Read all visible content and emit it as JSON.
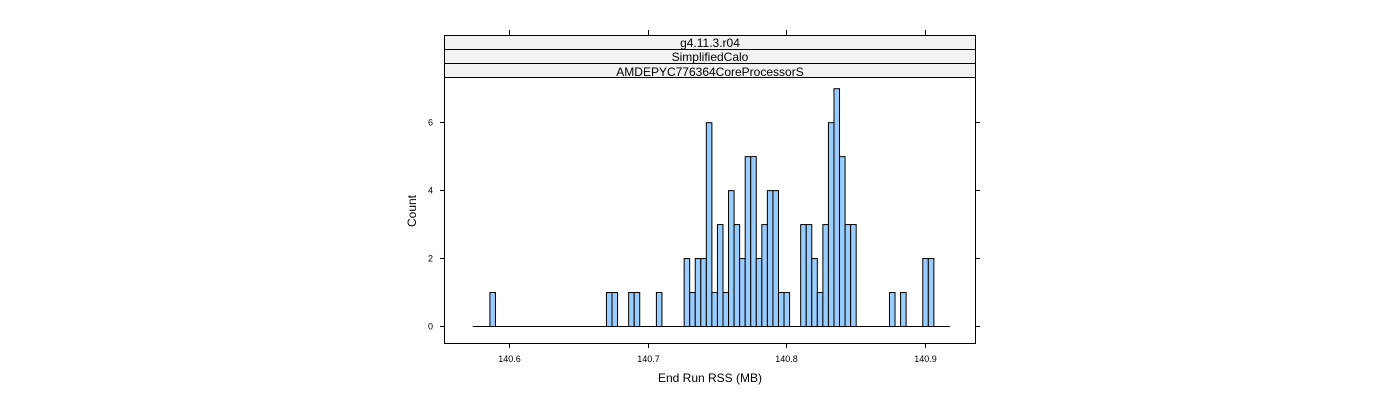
{
  "chart_data": {
    "type": "bar",
    "panel_strips": [
      "g4.11.3.r04",
      "SimplifiedCalo",
      "AMDEPYC776364CoreProcessorS"
    ],
    "xlabel": "End Run RSS (MB)",
    "ylabel": "Count",
    "xlim": [
      140.554,
      140.936
    ],
    "ylim": [
      -0.5,
      7.3
    ],
    "x_ticks": [
      140.6,
      140.7,
      140.8,
      140.9
    ],
    "x_tick_labels": [
      "140.6",
      "140.7",
      "140.8",
      "140.9"
    ],
    "y_ticks": [
      0,
      2,
      4,
      6
    ],
    "y_tick_labels": [
      "0",
      "2",
      "4",
      "6"
    ],
    "baseline_range": [
      140.574,
      140.918
    ],
    "bin_width": 0.004,
    "bars": [
      {
        "x": 140.588,
        "count": 1
      },
      {
        "x": 140.672,
        "count": 1
      },
      {
        "x": 140.676,
        "count": 1
      },
      {
        "x": 140.688,
        "count": 1
      },
      {
        "x": 140.692,
        "count": 1
      },
      {
        "x": 140.708,
        "count": 1
      },
      {
        "x": 140.728,
        "count": 2
      },
      {
        "x": 140.732,
        "count": 1
      },
      {
        "x": 140.736,
        "count": 2
      },
      {
        "x": 140.74,
        "count": 2
      },
      {
        "x": 140.744,
        "count": 6
      },
      {
        "x": 140.748,
        "count": 1
      },
      {
        "x": 140.752,
        "count": 3
      },
      {
        "x": 140.756,
        "count": 1
      },
      {
        "x": 140.76,
        "count": 4
      },
      {
        "x": 140.764,
        "count": 3
      },
      {
        "x": 140.768,
        "count": 2
      },
      {
        "x": 140.772,
        "count": 5
      },
      {
        "x": 140.776,
        "count": 5
      },
      {
        "x": 140.78,
        "count": 2
      },
      {
        "x": 140.784,
        "count": 3
      },
      {
        "x": 140.788,
        "count": 4
      },
      {
        "x": 140.792,
        "count": 4
      },
      {
        "x": 140.796,
        "count": 1
      },
      {
        "x": 140.8,
        "count": 1
      },
      {
        "x": 140.812,
        "count": 3
      },
      {
        "x": 140.816,
        "count": 3
      },
      {
        "x": 140.82,
        "count": 2
      },
      {
        "x": 140.824,
        "count": 1
      },
      {
        "x": 140.828,
        "count": 3
      },
      {
        "x": 140.832,
        "count": 6
      },
      {
        "x": 140.836,
        "count": 7
      },
      {
        "x": 140.84,
        "count": 5
      },
      {
        "x": 140.844,
        "count": 3
      },
      {
        "x": 140.848,
        "count": 3
      },
      {
        "x": 140.876,
        "count": 1
      },
      {
        "x": 140.884,
        "count": 1
      },
      {
        "x": 140.9,
        "count": 2
      },
      {
        "x": 140.904,
        "count": 2
      }
    ],
    "colors": {
      "bar_fill": "#99ccff",
      "bar_stroke": "#000000",
      "strip_fill": "#f2f2f2",
      "frame": "#000000"
    },
    "grid": false,
    "legend": "none"
  }
}
